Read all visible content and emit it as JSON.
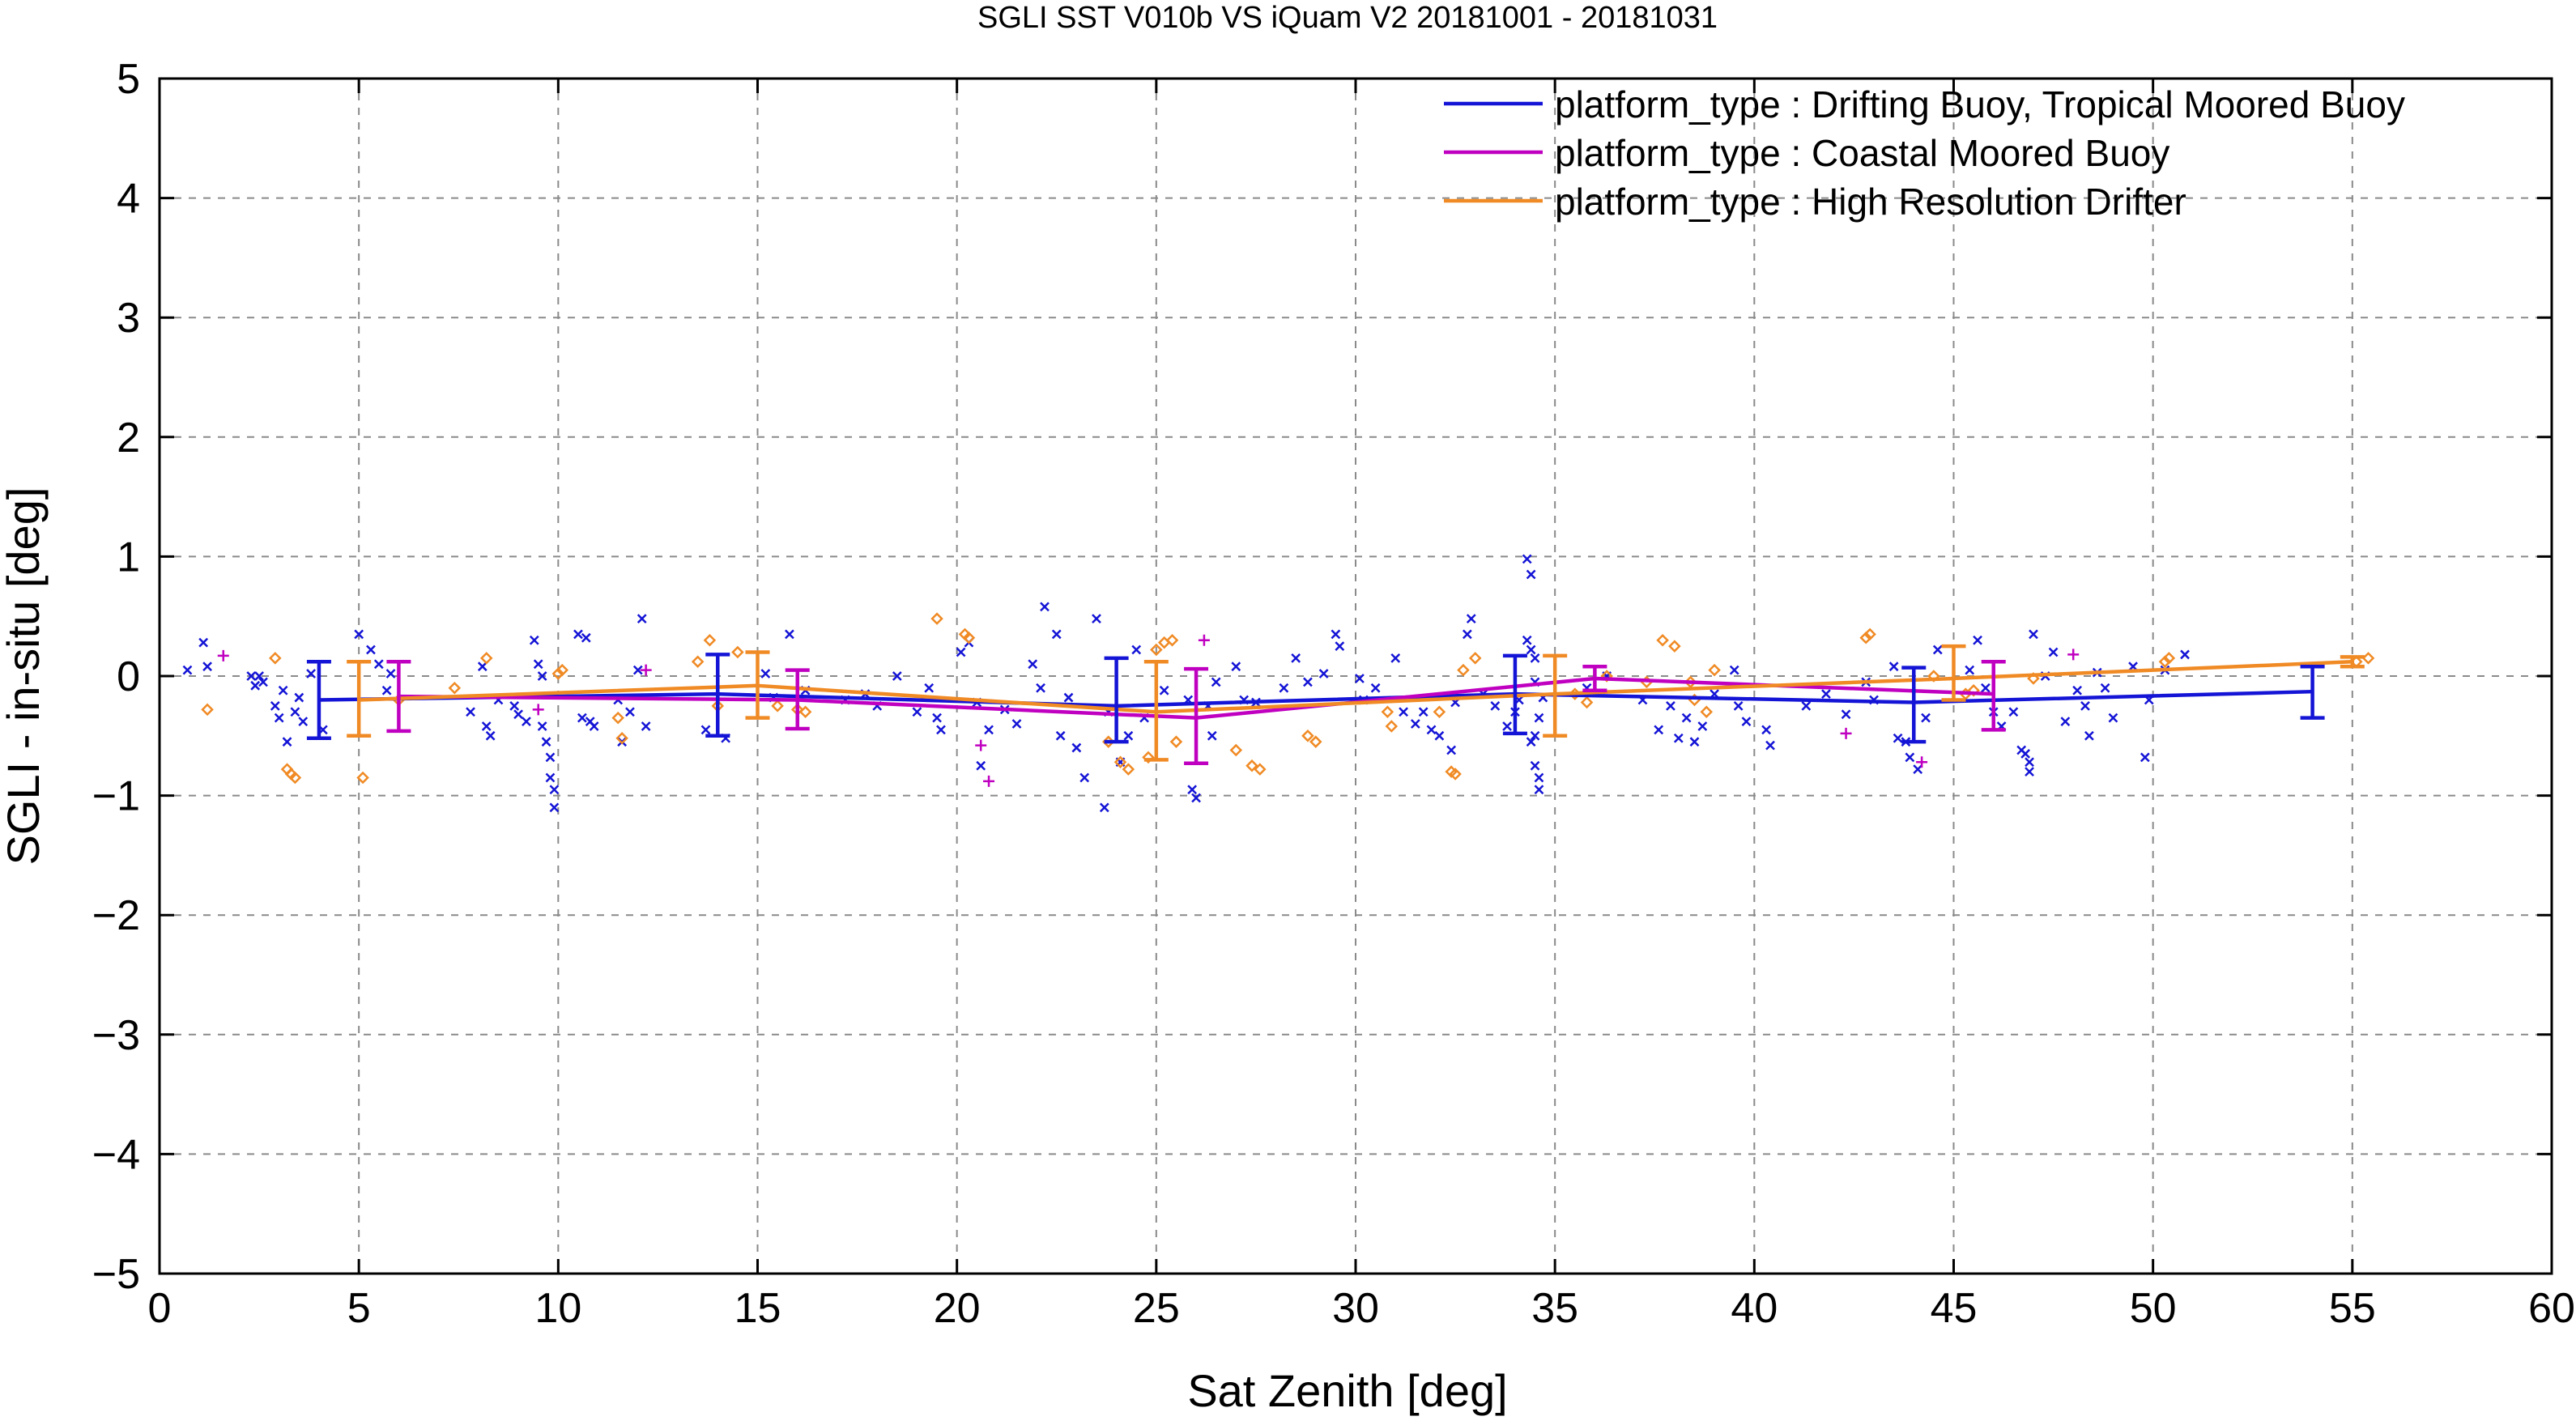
{
  "chart_data": {
    "type": "scatter",
    "title": "SGLI SST V010b VS iQuam V2 20181001 - 20181031",
    "xlabel": "Sat Zenith [deg]",
    "ylabel": "SGLI - in-situ [deg]",
    "xlim": [
      0,
      60
    ],
    "ylim": [
      -5,
      5
    ],
    "x_ticks": [
      0,
      5,
      10,
      15,
      20,
      25,
      30,
      35,
      40,
      45,
      50,
      55,
      60
    ],
    "y_ticks": [
      -5,
      -4,
      -3,
      -2,
      -1,
      0,
      1,
      2,
      3,
      4,
      5
    ],
    "x_tick_labels": [
      "0",
      "5",
      "10",
      "15",
      "20",
      "25",
      "30",
      "35",
      "40",
      "45",
      "50",
      "55",
      "60"
    ],
    "y_tick_labels": [
      "−5",
      "−4",
      "−3",
      "−2",
      "−1",
      "0",
      "1",
      "2",
      "3",
      "4",
      "5"
    ],
    "grid": true,
    "legend_position": "top-right",
    "series": [
      {
        "name": "platform_type : Drifting Buoy, Tropical Moored Buoy",
        "color": "#1414d6",
        "marker": "x",
        "mean_line": {
          "x": [
            4,
            14,
            24,
            34,
            44,
            54
          ],
          "y": [
            -0.2,
            -0.15,
            -0.25,
            -0.15,
            -0.22,
            -0.13
          ]
        },
        "error_bars": [
          {
            "x": 4,
            "low": -0.52,
            "high": 0.12
          },
          {
            "x": 14,
            "low": -0.5,
            "high": 0.18
          },
          {
            "x": 24,
            "low": -0.55,
            "high": 0.15
          },
          {
            "x": 34,
            "low": -0.48,
            "high": 0.17
          },
          {
            "x": 44,
            "low": -0.55,
            "high": 0.07
          },
          {
            "x": 54,
            "low": -0.35,
            "high": 0.08
          }
        ],
        "points": [
          [
            0.7,
            0.05
          ],
          [
            1.1,
            0.28
          ],
          [
            1.2,
            0.08
          ],
          [
            2.3,
            0.0
          ],
          [
            2.4,
            -0.08
          ],
          [
            2.5,
            0.0
          ],
          [
            2.6,
            -0.05
          ],
          [
            2.9,
            -0.25
          ],
          [
            3.0,
            -0.35
          ],
          [
            3.1,
            -0.12
          ],
          [
            3.2,
            -0.55
          ],
          [
            3.4,
            -0.3
          ],
          [
            3.5,
            -0.18
          ],
          [
            3.6,
            -0.38
          ],
          [
            3.8,
            0.02
          ],
          [
            4.1,
            -0.45
          ],
          [
            5.0,
            0.35
          ],
          [
            5.3,
            0.22
          ],
          [
            5.5,
            0.1
          ],
          [
            5.7,
            -0.12
          ],
          [
            5.8,
            0.02
          ],
          [
            7.8,
            -0.3
          ],
          [
            8.1,
            0.08
          ],
          [
            8.2,
            -0.42
          ],
          [
            8.3,
            -0.5
          ],
          [
            8.5,
            -0.2
          ],
          [
            8.9,
            -0.25
          ],
          [
            9.0,
            -0.32
          ],
          [
            9.2,
            -0.38
          ],
          [
            9.4,
            0.3
          ],
          [
            9.5,
            0.1
          ],
          [
            9.6,
            0.0
          ],
          [
            9.6,
            -0.42
          ],
          [
            9.7,
            -0.55
          ],
          [
            9.8,
            -0.68
          ],
          [
            9.8,
            -0.85
          ],
          [
            9.9,
            -0.95
          ],
          [
            9.9,
            -1.1
          ],
          [
            10.5,
            0.35
          ],
          [
            10.6,
            -0.35
          ],
          [
            10.7,
            0.32
          ],
          [
            10.8,
            -0.38
          ],
          [
            10.9,
            -0.42
          ],
          [
            11.5,
            -0.2
          ],
          [
            11.6,
            -0.55
          ],
          [
            11.8,
            -0.3
          ],
          [
            12.0,
            0.05
          ],
          [
            12.1,
            0.48
          ],
          [
            12.2,
            -0.42
          ],
          [
            13.7,
            -0.45
          ],
          [
            14.2,
            -0.52
          ],
          [
            15.2,
            0.02
          ],
          [
            15.4,
            -0.18
          ],
          [
            15.8,
            0.35
          ],
          [
            16.2,
            -0.12
          ],
          [
            17.2,
            -0.2
          ],
          [
            17.7,
            -0.15
          ],
          [
            18.0,
            -0.25
          ],
          [
            18.5,
            0.0
          ],
          [
            19.0,
            -0.3
          ],
          [
            19.3,
            -0.1
          ],
          [
            19.5,
            -0.35
          ],
          [
            19.6,
            -0.45
          ],
          [
            20.1,
            0.2
          ],
          [
            20.3,
            0.28
          ],
          [
            20.5,
            -0.22
          ],
          [
            20.6,
            -0.75
          ],
          [
            20.8,
            -0.45
          ],
          [
            21.2,
            -0.28
          ],
          [
            21.5,
            -0.4
          ],
          [
            21.9,
            0.1
          ],
          [
            22.1,
            -0.1
          ],
          [
            22.2,
            0.58
          ],
          [
            22.5,
            0.35
          ],
          [
            22.6,
            -0.5
          ],
          [
            22.8,
            -0.18
          ],
          [
            23.0,
            -0.6
          ],
          [
            23.2,
            -0.85
          ],
          [
            23.5,
            0.48
          ],
          [
            23.7,
            -1.1
          ],
          [
            23.8,
            -0.3
          ],
          [
            24.1,
            -0.72
          ],
          [
            24.3,
            -0.5
          ],
          [
            24.5,
            0.22
          ],
          [
            24.7,
            -0.35
          ],
          [
            25.2,
            -0.12
          ],
          [
            25.8,
            -0.2
          ],
          [
            25.9,
            -0.95
          ],
          [
            26.0,
            -1.02
          ],
          [
            26.3,
            -0.25
          ],
          [
            26.4,
            -0.5
          ],
          [
            26.5,
            -0.05
          ],
          [
            27.0,
            0.08
          ],
          [
            27.2,
            -0.2
          ],
          [
            27.5,
            -0.22
          ],
          [
            28.2,
            -0.1
          ],
          [
            28.5,
            0.15
          ],
          [
            28.8,
            -0.05
          ],
          [
            29.2,
            0.02
          ],
          [
            29.5,
            0.35
          ],
          [
            29.6,
            0.25
          ],
          [
            30.1,
            -0.02
          ],
          [
            30.2,
            -0.2
          ],
          [
            30.5,
            -0.1
          ],
          [
            31.0,
            0.15
          ],
          [
            31.2,
            -0.3
          ],
          [
            31.5,
            -0.4
          ],
          [
            31.7,
            -0.3
          ],
          [
            31.9,
            -0.45
          ],
          [
            32.1,
            -0.5
          ],
          [
            32.4,
            -0.62
          ],
          [
            32.5,
            -0.22
          ],
          [
            32.8,
            0.35
          ],
          [
            32.9,
            0.48
          ],
          [
            33.2,
            -0.15
          ],
          [
            33.5,
            -0.25
          ],
          [
            33.8,
            -0.42
          ],
          [
            34.0,
            -0.3
          ],
          [
            34.1,
            -0.2
          ],
          [
            34.3,
            0.98
          ],
          [
            34.4,
            0.85
          ],
          [
            34.3,
            0.3
          ],
          [
            34.4,
            0.22
          ],
          [
            34.5,
            0.15
          ],
          [
            34.5,
            -0.05
          ],
          [
            34.6,
            -0.35
          ],
          [
            34.5,
            -0.5
          ],
          [
            34.4,
            -0.55
          ],
          [
            34.5,
            -0.75
          ],
          [
            34.6,
            -0.85
          ],
          [
            34.6,
            -0.95
          ],
          [
            34.7,
            -0.18
          ],
          [
            35.8,
            -0.1
          ],
          [
            36.3,
            0.0
          ],
          [
            37.2,
            -0.2
          ],
          [
            37.6,
            -0.45
          ],
          [
            37.9,
            -0.25
          ],
          [
            38.1,
            -0.52
          ],
          [
            38.3,
            -0.35
          ],
          [
            38.5,
            -0.55
          ],
          [
            38.7,
            -0.42
          ],
          [
            39.0,
            -0.15
          ],
          [
            39.5,
            0.05
          ],
          [
            39.6,
            -0.25
          ],
          [
            39.8,
            -0.38
          ],
          [
            40.3,
            -0.45
          ],
          [
            40.4,
            -0.58
          ],
          [
            41.3,
            -0.25
          ],
          [
            41.8,
            -0.15
          ],
          [
            42.3,
            -0.32
          ],
          [
            42.8,
            -0.05
          ],
          [
            43.0,
            -0.2
          ],
          [
            43.5,
            0.08
          ],
          [
            43.6,
            -0.52
          ],
          [
            43.8,
            -0.55
          ],
          [
            43.9,
            -0.68
          ],
          [
            44.1,
            -0.78
          ],
          [
            44.3,
            -0.35
          ],
          [
            44.6,
            0.22
          ],
          [
            45.4,
            0.05
          ],
          [
            45.6,
            0.3
          ],
          [
            45.8,
            -0.1
          ],
          [
            46.0,
            -0.3
          ],
          [
            46.2,
            -0.42
          ],
          [
            46.5,
            -0.3
          ],
          [
            46.7,
            -0.62
          ],
          [
            46.8,
            -0.65
          ],
          [
            46.9,
            -0.72
          ],
          [
            46.9,
            -0.8
          ],
          [
            47.0,
            0.35
          ],
          [
            47.3,
            0.0
          ],
          [
            47.5,
            0.2
          ],
          [
            47.8,
            -0.38
          ],
          [
            48.1,
            -0.12
          ],
          [
            48.3,
            -0.25
          ],
          [
            48.4,
            -0.5
          ],
          [
            48.6,
            0.03
          ],
          [
            48.8,
            -0.1
          ],
          [
            49.0,
            -0.35
          ],
          [
            49.5,
            0.08
          ],
          [
            49.8,
            -0.68
          ],
          [
            49.9,
            -0.2
          ],
          [
            50.3,
            0.05
          ],
          [
            50.8,
            0.18
          ]
        ]
      },
      {
        "name": "platform_type : Coastal Moored Buoy",
        "color": "#c000c0",
        "marker": "+",
        "mean_line": {
          "x": [
            6,
            16,
            26,
            36,
            46
          ],
          "y": [
            -0.17,
            -0.2,
            -0.35,
            -0.02,
            -0.15
          ]
        },
        "error_bars": [
          {
            "x": 6,
            "low": -0.46,
            "high": 0.12
          },
          {
            "x": 16,
            "low": -0.44,
            "high": 0.05
          },
          {
            "x": 26,
            "low": -0.73,
            "high": 0.06
          },
          {
            "x": 36,
            "low": -0.12,
            "high": 0.08
          },
          {
            "x": 46,
            "low": -0.45,
            "high": 0.12
          }
        ],
        "points": [
          [
            1.6,
            0.17
          ],
          [
            9.5,
            -0.28
          ],
          [
            12.2,
            0.05
          ],
          [
            20.6,
            -0.58
          ],
          [
            20.8,
            -0.88
          ],
          [
            26.2,
            0.3
          ],
          [
            42.3,
            -0.48
          ],
          [
            44.2,
            -0.72
          ],
          [
            48.0,
            0.18
          ]
        ]
      },
      {
        "name": "platform_type : High Resolution Drifter",
        "color": "#f08a24",
        "marker": "diamond",
        "mean_line": {
          "x": [
            5,
            15,
            25,
            35,
            45,
            55
          ],
          "y": [
            -0.2,
            -0.08,
            -0.3,
            -0.15,
            -0.02,
            0.12
          ]
        },
        "error_bars": [
          {
            "x": 5,
            "low": -0.5,
            "high": 0.12
          },
          {
            "x": 15,
            "low": -0.35,
            "high": 0.2
          },
          {
            "x": 25,
            "low": -0.7,
            "high": 0.12
          },
          {
            "x": 35,
            "low": -0.5,
            "high": 0.17
          },
          {
            "x": 45,
            "low": -0.2,
            "high": 0.25
          },
          {
            "x": 55,
            "low": 0.08,
            "high": 0.16
          }
        ],
        "points": [
          [
            1.2,
            -0.28
          ],
          [
            2.9,
            0.15
          ],
          [
            3.2,
            -0.78
          ],
          [
            3.3,
            -0.82
          ],
          [
            3.4,
            -0.85
          ],
          [
            5.1,
            -0.85
          ],
          [
            6.0,
            -0.2
          ],
          [
            7.4,
            -0.1
          ],
          [
            8.2,
            0.15
          ],
          [
            10.0,
            0.02
          ],
          [
            10.1,
            0.05
          ],
          [
            11.5,
            -0.35
          ],
          [
            11.6,
            -0.52
          ],
          [
            13.5,
            0.12
          ],
          [
            13.8,
            0.3
          ],
          [
            14.0,
            -0.25
          ],
          [
            14.5,
            0.2
          ],
          [
            15.5,
            -0.25
          ],
          [
            16.0,
            -0.28
          ],
          [
            16.2,
            -0.3
          ],
          [
            19.5,
            0.48
          ],
          [
            20.2,
            0.35
          ],
          [
            20.3,
            0.32
          ],
          [
            23.8,
            -0.55
          ],
          [
            24.1,
            -0.72
          ],
          [
            24.3,
            -0.78
          ],
          [
            24.8,
            -0.68
          ],
          [
            25.0,
            0.22
          ],
          [
            25.2,
            0.28
          ],
          [
            25.4,
            0.3
          ],
          [
            25.5,
            -0.55
          ],
          [
            27.0,
            -0.62
          ],
          [
            27.4,
            -0.75
          ],
          [
            27.6,
            -0.78
          ],
          [
            28.8,
            -0.5
          ],
          [
            29.0,
            -0.55
          ],
          [
            30.8,
            -0.3
          ],
          [
            30.9,
            -0.42
          ],
          [
            32.1,
            -0.3
          ],
          [
            32.4,
            -0.8
          ],
          [
            32.5,
            -0.82
          ],
          [
            32.7,
            0.05
          ],
          [
            33.0,
            0.15
          ],
          [
            35.5,
            -0.15
          ],
          [
            35.8,
            -0.22
          ],
          [
            36.3,
            0.0
          ],
          [
            37.3,
            -0.05
          ],
          [
            37.7,
            0.3
          ],
          [
            38.0,
            0.25
          ],
          [
            38.4,
            -0.05
          ],
          [
            38.5,
            -0.2
          ],
          [
            38.8,
            -0.3
          ],
          [
            39.0,
            0.05
          ],
          [
            42.8,
            0.32
          ],
          [
            42.9,
            0.35
          ],
          [
            44.5,
            0.0
          ],
          [
            45.3,
            -0.15
          ],
          [
            45.5,
            -0.12
          ],
          [
            47.0,
            -0.02
          ],
          [
            50.3,
            0.12
          ],
          [
            50.4,
            0.15
          ],
          [
            55.1,
            0.12
          ],
          [
            55.4,
            0.15
          ]
        ]
      }
    ]
  }
}
